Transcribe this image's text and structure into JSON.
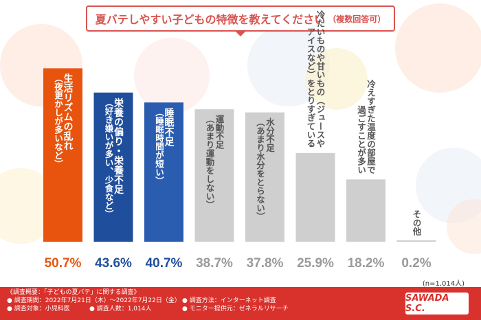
{
  "title": {
    "main": "夏バテしやすい子どもの特徴を教えてください",
    "note": "（複数回答可）"
  },
  "chart_data": {
    "type": "bar",
    "categories": [
      "生活リズムの乱れ（夜更かしが多いなど）",
      "栄養の偏り・栄養不足（好き嫌いが多い、少食など）",
      "睡眠不足（睡眠時間が短い）",
      "運動不足（あまり運動をしない）",
      "水分不足（あまり水分をとらない）",
      "冷たいものや甘いもの（ジュースやアイスなど）をとりすぎている",
      "冷えすぎた温度の部屋で過ごすことが多い",
      "その他"
    ],
    "label_lines": [
      [
        "生活リズムの乱れ",
        "（夜更かしが多いなど）"
      ],
      [
        "栄養の偏り・栄養不足",
        "（好き嫌いが多い、少食など）"
      ],
      [
        "睡眠不足",
        "（睡眠時間が短い）"
      ],
      [
        "運動不足",
        "（あまり運動をしない）"
      ],
      [
        "水分不足",
        "（あまり水分をとらない）"
      ],
      [
        "冷たいものや甘いもの（ジュースや",
        "アイスなど）をとりすぎている"
      ],
      [
        "冷えすぎた温度の部屋で",
        "過ごすことが多い"
      ],
      [
        "その他"
      ]
    ],
    "values": [
      50.7,
      43.6,
      40.7,
      38.7,
      37.8,
      25.9,
      18.2,
      0.2
    ],
    "value_labels": [
      "50.7%",
      "43.6%",
      "40.7%",
      "38.7%",
      "37.8%",
      "25.9%",
      "18.2%",
      "0.2%"
    ],
    "colors": {
      "first": "#e8540e",
      "second": "#1f4e9c",
      "third": "#2a5db0",
      "rest": "#cfcfcf",
      "first_value": "#e8540e",
      "top_value": "#1f4e9c",
      "rest_value": "#9a9a9a"
    },
    "ylim": [
      0,
      55
    ]
  },
  "sample_note": "(n=1,014人)",
  "footer": {
    "summary": "《調査概要：「子どもの夏バテ」に関する調査》",
    "period": "● 調査期間：2022年7月21日（木）〜2022年7月22日（金）",
    "method": "● 調査方法：インターネット調査",
    "target": "● 調査対象：小児科医",
    "count": "● 調査人数：1,014人",
    "provider": "● モニター提供元：ゼネラルリサーチ",
    "logo": "SAWADA S.C."
  }
}
